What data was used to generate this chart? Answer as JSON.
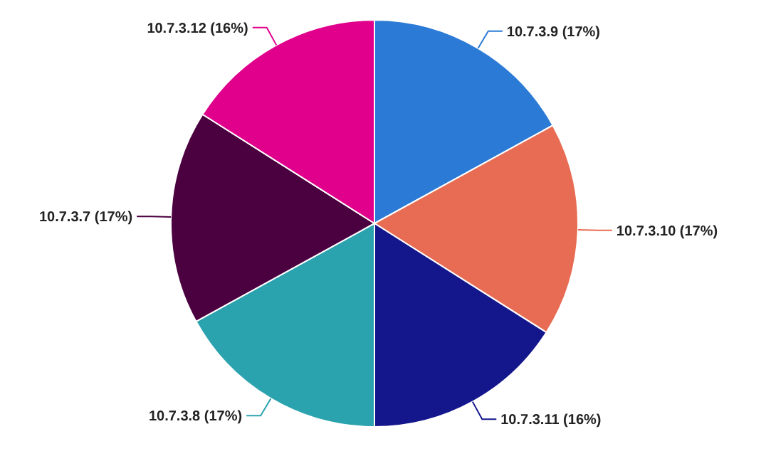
{
  "chart_data": {
    "type": "pie",
    "categories": [
      "10.7.3.9",
      "10.7.3.10",
      "10.7.3.11",
      "10.7.3.8",
      "10.7.3.7",
      "10.7.3.12"
    ],
    "values": [
      17,
      17,
      16,
      17,
      17,
      16
    ],
    "value_labels": [
      "(17%)",
      "(17%)",
      "(16%)",
      "(17%)",
      "(17%)",
      "(16%)"
    ],
    "colors": [
      "#2b7bd6",
      "#e86c53",
      "#14168c",
      "#2ba3af",
      "#4b0040",
      "#e0008c"
    ]
  }
}
